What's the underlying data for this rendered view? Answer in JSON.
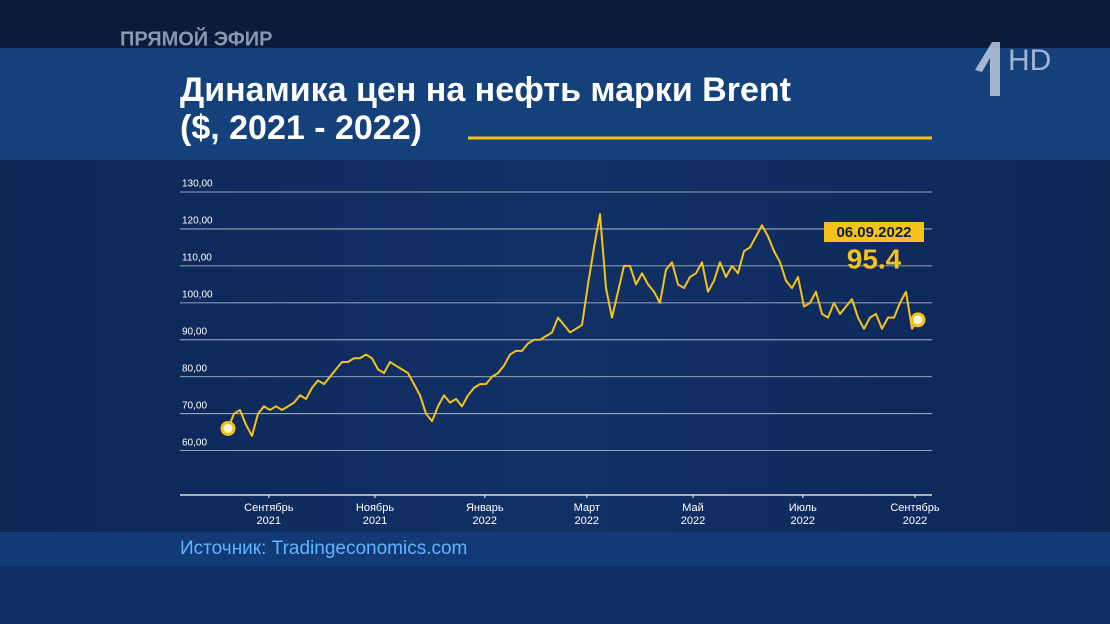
{
  "page": {
    "live_label": "ПРЯМОЙ ЭФИР",
    "logo": "HD",
    "source": "Источник: Tradingeconomics.com"
  },
  "chart_data": {
    "type": "line",
    "title": "Динамика цен на нефть марки Brent",
    "subtitle": "($, 2021 - 2022)",
    "annotation": {
      "date": "06.09.2022",
      "value_label": "95.4"
    },
    "color": "#f5c21b",
    "grid": true,
    "values": [
      66,
      70,
      71,
      67,
      64,
      70,
      72,
      71,
      72,
      71,
      72,
      73,
      75,
      74,
      77,
      79,
      78,
      80,
      82,
      84,
      84,
      85,
      85,
      86,
      85,
      82,
      81,
      84,
      83,
      82,
      81,
      78,
      75,
      70,
      68,
      72,
      75,
      73,
      74,
      72,
      75,
      77,
      78,
      78,
      80,
      81,
      83,
      86,
      87,
      87,
      89,
      90,
      90,
      91,
      92,
      96,
      94,
      92,
      93,
      94,
      105,
      115,
      124,
      104,
      96,
      103,
      110,
      110,
      105,
      108,
      105,
      103,
      100,
      109,
      111,
      105,
      104,
      107,
      108,
      111,
      103,
      106,
      111,
      107,
      110,
      108,
      114,
      115,
      118,
      121,
      118,
      114,
      111,
      106,
      104,
      107,
      99,
      100,
      103,
      97,
      96,
      100,
      97,
      99,
      101,
      96,
      93,
      96,
      97,
      93,
      96,
      96,
      100,
      103,
      93,
      95.4
    ],
    "xlim": [
      0,
      115
    ],
    "xticks": [
      {
        "value": 6.8,
        "label": [
          "Сентябрь",
          "2021"
        ]
      },
      {
        "value": 24.5,
        "label": [
          "Ноябрь",
          "2021"
        ]
      },
      {
        "value": 42.8,
        "label": [
          "Январь",
          "2022"
        ]
      },
      {
        "value": 59.8,
        "label": [
          "Март",
          "2022"
        ]
      },
      {
        "value": 77.5,
        "label": [
          "Май",
          "2022"
        ]
      },
      {
        "value": 95.8,
        "label": [
          "Июль",
          "2022"
        ]
      },
      {
        "value": 114.5,
        "label": [
          "Сентябрь",
          "2022"
        ]
      }
    ],
    "ylim": [
      48,
      130
    ],
    "yticks": [
      {
        "value": 60,
        "label": "60,00"
      },
      {
        "value": 70,
        "label": "70,00"
      },
      {
        "value": 80,
        "label": "80,00"
      },
      {
        "value": 90,
        "label": "90,00"
      },
      {
        "value": 100,
        "label": "100,00"
      },
      {
        "value": 110,
        "label": "110,00"
      },
      {
        "value": 120,
        "label": "120,00"
      },
      {
        "value": 130,
        "label": "130,00"
      }
    ]
  }
}
